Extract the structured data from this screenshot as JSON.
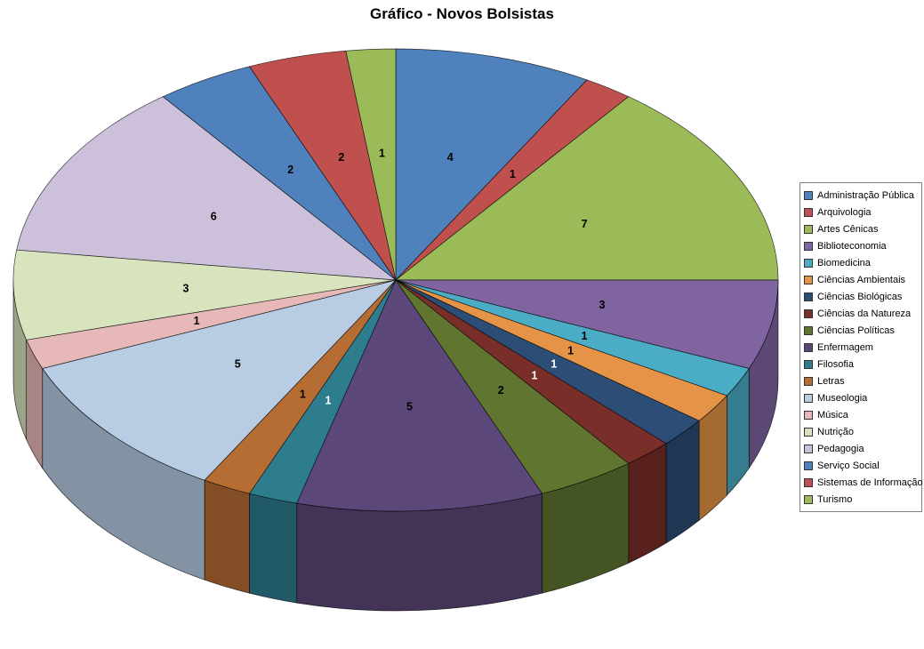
{
  "chart_data": {
    "type": "pie",
    "three_d": true,
    "title": "Gráfico - Novos Bolsistas",
    "legend_position": "right",
    "direction": "clockwise",
    "start_angle_deg": 0,
    "total": 48,
    "slices": [
      {
        "label": "Administração Pública",
        "value": 4,
        "color": "#4F81BD",
        "label_color": "#000000"
      },
      {
        "label": "Arquivologia",
        "value": 1,
        "color": "#C0504D",
        "label_color": "#000000"
      },
      {
        "label": "Artes Cênicas",
        "value": 7,
        "color": "#9BBB59",
        "label_color": "#000000"
      },
      {
        "label": "Biblioteconomia",
        "value": 3,
        "color": "#8064A2",
        "label_color": "#000000"
      },
      {
        "label": "Biomedicina",
        "value": 1,
        "color": "#4BACC6",
        "label_color": "#000000"
      },
      {
        "label": "Ciências Ambientais",
        "value": 1,
        "color": "#E59346",
        "label_color": "#000000"
      },
      {
        "label": "Ciências Biológicas",
        "value": 1,
        "color": "#2C4D75",
        "label_color": "#ffffff"
      },
      {
        "label": "Ciências da Natureza",
        "value": 1,
        "color": "#7A2E2A",
        "label_color": "#ffffff"
      },
      {
        "label": "Ciências Políticas",
        "value": 2,
        "color": "#5F7530",
        "label_color": "#000000"
      },
      {
        "label": "Enfermagem",
        "value": 5,
        "color": "#5B4779",
        "label_color": "#000000"
      },
      {
        "label": "Filosofia",
        "value": 1,
        "color": "#2E7D8F",
        "label_color": "#ffffff"
      },
      {
        "label": "Letras",
        "value": 1,
        "color": "#B66D33",
        "label_color": "#000000"
      },
      {
        "label": "Museologia",
        "value": 5,
        "color": "#B8CCE4",
        "label_color": "#000000"
      },
      {
        "label": "Música",
        "value": 1,
        "color": "#E6B9B8",
        "label_color": "#000000"
      },
      {
        "label": "Nutrição",
        "value": 3,
        "color": "#D7E4BD",
        "label_color": "#000000"
      },
      {
        "label": "Pedagogia",
        "value": 6,
        "color": "#CCC0DA",
        "label_color": "#000000"
      },
      {
        "label": "Serviço Social",
        "value": 2,
        "color": "#4F81BD",
        "label_color": "#000000"
      },
      {
        "label": "Sistemas de Informação",
        "value": 2,
        "color": "#C0504D",
        "label_color": "#000000"
      },
      {
        "label": "Turismo",
        "value": 1,
        "color": "#9BBB59",
        "label_color": "#000000"
      }
    ]
  }
}
